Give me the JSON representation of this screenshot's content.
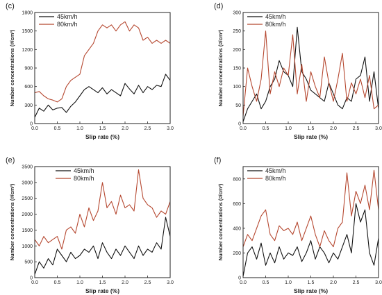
{
  "colors": {
    "series_45": "#111111",
    "series_80": "#b5472f",
    "axis": "#222222"
  },
  "chart_data": [
    {
      "type": "line",
      "panel": "(c)",
      "xlabel": "Slip rate (%)",
      "ylabel": "Number concentrations (#/cm³)",
      "xlim": [
        0,
        3
      ],
      "ylim": [
        0,
        1800
      ],
      "xticks": [
        "0.0",
        "0.5",
        "1.0",
        "1.5",
        "2.0",
        "2.5",
        "3.0"
      ],
      "yticks": [
        "0",
        "300",
        "600",
        "900",
        "1200",
        "1500",
        "1800"
      ],
      "grid": false,
      "legend": "top-left",
      "series": [
        {
          "name": "45km/h",
          "x": [
            0,
            0.1,
            0.2,
            0.3,
            0.4,
            0.5,
            0.6,
            0.7,
            0.8,
            0.9,
            1.0,
            1.1,
            1.2,
            1.3,
            1.4,
            1.5,
            1.6,
            1.7,
            1.8,
            1.9,
            2.0,
            2.1,
            2.2,
            2.3,
            2.4,
            2.5,
            2.6,
            2.7,
            2.8,
            2.9,
            3.0
          ],
          "y": [
            100,
            250,
            200,
            300,
            220,
            250,
            260,
            180,
            280,
            350,
            450,
            550,
            600,
            550,
            500,
            580,
            480,
            550,
            500,
            450,
            650,
            560,
            480,
            620,
            500,
            600,
            550,
            620,
            600,
            800,
            700
          ]
        },
        {
          "name": "80km/h",
          "x": [
            0,
            0.1,
            0.2,
            0.3,
            0.4,
            0.5,
            0.6,
            0.7,
            0.8,
            0.9,
            1.0,
            1.1,
            1.2,
            1.3,
            1.4,
            1.5,
            1.6,
            1.7,
            1.8,
            1.9,
            2.0,
            2.1,
            2.2,
            2.3,
            2.4,
            2.5,
            2.6,
            2.7,
            2.8,
            2.9,
            3.0
          ],
          "y": [
            500,
            520,
            450,
            400,
            380,
            350,
            400,
            600,
            700,
            750,
            800,
            1100,
            1200,
            1300,
            1500,
            1600,
            1550,
            1600,
            1500,
            1600,
            1650,
            1500,
            1600,
            1550,
            1350,
            1400,
            1300,
            1350,
            1300,
            1350,
            1300
          ]
        }
      ]
    },
    {
      "type": "line",
      "panel": "(d)",
      "xlabel": "Slip rate (%)",
      "ylabel": "Number concentrations (#/cm³)",
      "xlim": [
        0,
        3
      ],
      "ylim": [
        0,
        300
      ],
      "xticks": [
        "0.0",
        "0.5",
        "1.0",
        "1.5",
        "2.0",
        "2.5",
        "3.0"
      ],
      "yticks": [
        "0",
        "50",
        "100",
        "150",
        "200",
        "250",
        "300"
      ],
      "grid": false,
      "legend": "top-left",
      "series": [
        {
          "name": "45km/h",
          "x": [
            0,
            0.1,
            0.2,
            0.3,
            0.4,
            0.5,
            0.6,
            0.7,
            0.8,
            0.9,
            1.0,
            1.1,
            1.2,
            1.3,
            1.4,
            1.5,
            1.6,
            1.7,
            1.8,
            1.9,
            2.0,
            2.1,
            2.2,
            2.3,
            2.4,
            2.5,
            2.6,
            2.7,
            2.8,
            2.9,
            3.0
          ],
          "y": [
            5,
            40,
            60,
            80,
            40,
            60,
            100,
            120,
            170,
            140,
            130,
            100,
            260,
            140,
            120,
            90,
            80,
            70,
            60,
            110,
            80,
            50,
            40,
            70,
            60,
            120,
            130,
            180,
            60,
            140,
            40
          ]
        },
        {
          "name": "80km/h",
          "x": [
            0,
            0.1,
            0.2,
            0.3,
            0.4,
            0.5,
            0.6,
            0.7,
            0.8,
            0.9,
            1.0,
            1.1,
            1.2,
            1.3,
            1.4,
            1.5,
            1.6,
            1.7,
            1.8,
            1.9,
            2.0,
            2.1,
            2.2,
            2.3,
            2.4,
            2.5,
            2.6,
            2.7,
            2.8,
            2.9,
            3.0
          ],
          "y": [
            20,
            150,
            100,
            60,
            120,
            250,
            80,
            140,
            100,
            150,
            130,
            240,
            80,
            160,
            60,
            140,
            100,
            70,
            180,
            110,
            60,
            120,
            190,
            60,
            110,
            80,
            120,
            70,
            130,
            40,
            50
          ]
        }
      ]
    },
    {
      "type": "line",
      "panel": "(e)",
      "xlabel": "Slip rate (%)",
      "ylabel": "Number concentrations (#/cm³)",
      "xlim": [
        0,
        3
      ],
      "ylim": [
        0,
        3500
      ],
      "xticks": [
        "0.0",
        "0.5",
        "1.0",
        "1.5",
        "2.0",
        "2.5",
        "3.0"
      ],
      "yticks": [
        "0",
        "500",
        "1000",
        "1500",
        "2000",
        "2500",
        "3000",
        "3500"
      ],
      "grid": false,
      "legend": "top-center",
      "series": [
        {
          "name": "45km/h",
          "x": [
            0,
            0.1,
            0.2,
            0.3,
            0.4,
            0.5,
            0.6,
            0.7,
            0.8,
            0.9,
            1.0,
            1.1,
            1.2,
            1.3,
            1.4,
            1.5,
            1.6,
            1.7,
            1.8,
            1.9,
            2.0,
            2.1,
            2.2,
            2.3,
            2.4,
            2.5,
            2.6,
            2.7,
            2.8,
            2.9,
            3.0
          ],
          "y": [
            100,
            500,
            300,
            600,
            400,
            900,
            700,
            500,
            800,
            600,
            700,
            900,
            800,
            1000,
            600,
            1100,
            800,
            600,
            900,
            700,
            1000,
            800,
            600,
            1000,
            700,
            900,
            800,
            1100,
            900,
            1900,
            1300
          ]
        },
        {
          "name": "80km/h",
          "x": [
            0,
            0.1,
            0.2,
            0.3,
            0.4,
            0.5,
            0.6,
            0.7,
            0.8,
            0.9,
            1.0,
            1.1,
            1.2,
            1.3,
            1.4,
            1.5,
            1.6,
            1.7,
            1.8,
            1.9,
            2.0,
            2.1,
            2.2,
            2.3,
            2.4,
            2.5,
            2.6,
            2.7,
            2.8,
            2.9,
            3.0
          ],
          "y": [
            1200,
            1000,
            1300,
            1100,
            1200,
            1300,
            900,
            1500,
            1600,
            1400,
            2000,
            1600,
            2200,
            1800,
            2100,
            3000,
            2200,
            2400,
            2000,
            2600,
            2200,
            2300,
            2100,
            3400,
            2500,
            2300,
            2200,
            1900,
            2100,
            2000,
            2400
          ]
        }
      ]
    },
    {
      "type": "line",
      "panel": "(f)",
      "xlabel": "Slip rate (%)",
      "ylabel": "Number concentrations (#/cm³)",
      "xlim": [
        0,
        3
      ],
      "ylim": [
        0,
        900
      ],
      "xticks": [
        "0.0",
        "0.5",
        "1.0",
        "1.5",
        "2.0",
        "2.5",
        "3.0"
      ],
      "yticks": [
        "0",
        "200",
        "400",
        "600",
        "800"
      ],
      "grid": false,
      "legend": "top-left",
      "series": [
        {
          "name": "45km/h",
          "x": [
            0,
            0.1,
            0.2,
            0.3,
            0.4,
            0.5,
            0.6,
            0.7,
            0.8,
            0.9,
            1.0,
            1.1,
            1.2,
            1.3,
            1.4,
            1.5,
            1.6,
            1.7,
            1.8,
            1.9,
            2.0,
            2.1,
            2.2,
            2.3,
            2.4,
            2.5,
            2.6,
            2.7,
            2.8,
            2.9,
            3.0
          ],
          "y": [
            10,
            200,
            250,
            150,
            280,
            100,
            200,
            120,
            250,
            150,
            200,
            180,
            250,
            130,
            200,
            300,
            150,
            250,
            200,
            120,
            200,
            150,
            250,
            350,
            200,
            600,
            450,
            550,
            200,
            100,
            320
          ]
        },
        {
          "name": "80km/h",
          "x": [
            0,
            0.1,
            0.2,
            0.3,
            0.4,
            0.5,
            0.6,
            0.7,
            0.8,
            0.9,
            1.0,
            1.1,
            1.2,
            1.3,
            1.4,
            1.5,
            1.6,
            1.7,
            1.8,
            1.9,
            2.0,
            2.1,
            2.2,
            2.3,
            2.4,
            2.5,
            2.6,
            2.7,
            2.8,
            2.9,
            3.0
          ],
          "y": [
            250,
            350,
            300,
            400,
            500,
            550,
            350,
            300,
            420,
            380,
            400,
            350,
            450,
            300,
            400,
            500,
            350,
            250,
            380,
            300,
            250,
            400,
            450,
            850,
            500,
            700,
            600,
            750,
            550,
            870,
            550
          ]
        }
      ]
    }
  ]
}
